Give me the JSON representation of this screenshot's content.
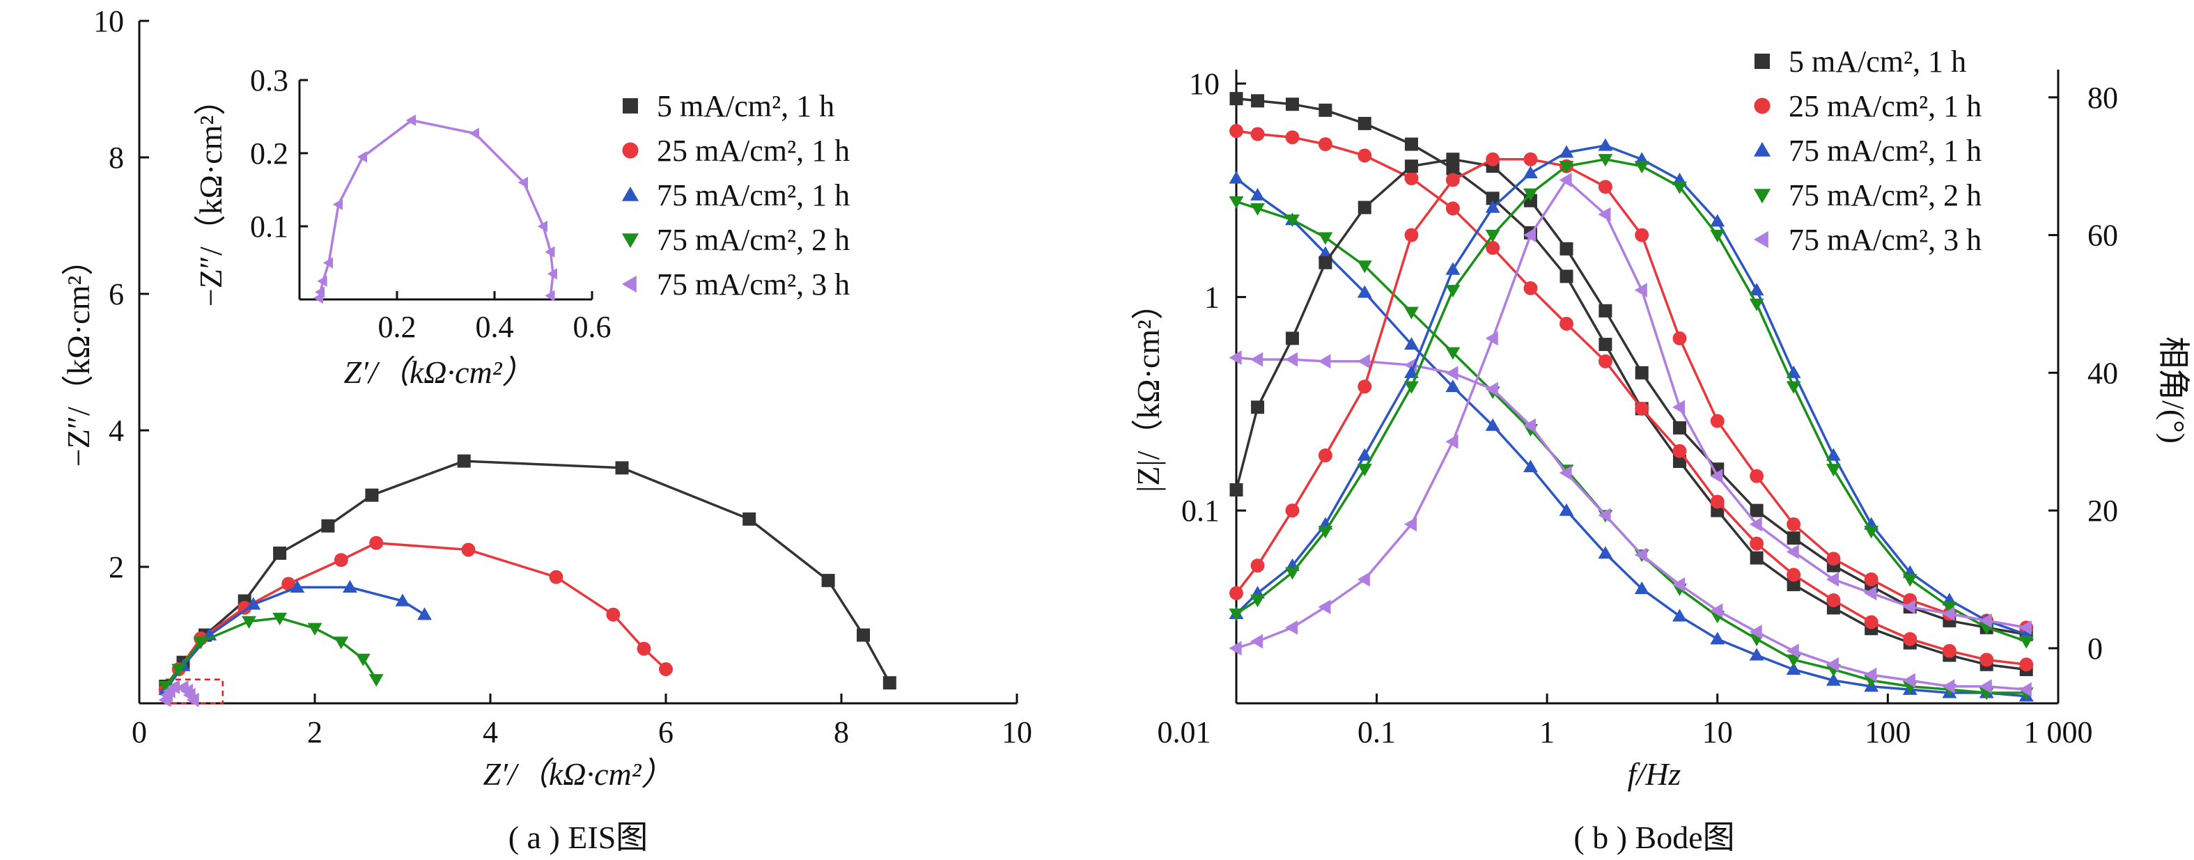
{
  "captions": {
    "a": "( a ) EIS图",
    "b": "( b ) Bode图"
  },
  "colors": {
    "s1": "#333333",
    "s2": "#e8383d",
    "s3": "#2b56c4",
    "s4": "#1a8f1a",
    "s5": "#b07ee0"
  },
  "legend_a": [
    "5 mA/cm², 1 h",
    "25 mA/cm², 1 h",
    "75 mA/cm², 1 h",
    "75 mA/cm², 2 h",
    "75 mA/cm², 3 h"
  ],
  "legend_b": [
    "5 mA/cm², 1 h",
    "25 mA/cm², 1 h",
    "75 mA/cm², 1 h",
    "75 mA/cm², 2 h",
    "75 mA/cm², 3 h"
  ],
  "chart_data": [
    {
      "id": "eis",
      "type": "scatter",
      "title": "",
      "xlabel": "Z′/（kΩ·cm²）",
      "ylabel": "−Z″/（kΩ·cm²）",
      "xlim": [
        0,
        10
      ],
      "ylim": [
        0,
        10
      ],
      "xticks": [
        "0",
        "2",
        "4",
        "6",
        "8",
        "10"
      ],
      "yticks": [
        "2",
        "4",
        "6",
        "8",
        "10"
      ],
      "series": [
        {
          "name": "5 mA/cm², 1 h",
          "marker": "square",
          "color": "#333333",
          "x": [
            0.3,
            0.5,
            0.75,
            1.2,
            1.6,
            2.15,
            2.65,
            3.7,
            5.5,
            6.95,
            7.85,
            8.25,
            8.55
          ],
          "y": [
            0.25,
            0.6,
            1.0,
            1.5,
            2.2,
            2.6,
            3.05,
            3.55,
            3.45,
            2.7,
            1.8,
            1.0,
            0.3
          ]
        },
        {
          "name": "25 mA/cm², 1 h",
          "marker": "circle",
          "color": "#e8383d",
          "x": [
            0.3,
            0.45,
            0.7,
            1.2,
            1.7,
            2.3,
            2.7,
            3.75,
            4.75,
            5.4,
            5.75,
            6.0
          ],
          "y": [
            0.2,
            0.5,
            0.95,
            1.4,
            1.75,
            2.1,
            2.35,
            2.25,
            1.85,
            1.3,
            0.8,
            0.5
          ]
        },
        {
          "name": "75 mA/cm², 1 h",
          "marker": "triangle-up",
          "color": "#2b56c4",
          "x": [
            0.3,
            0.5,
            0.8,
            1.3,
            1.8,
            2.4,
            3.0,
            3.25
          ],
          "y": [
            0.2,
            0.55,
            1.0,
            1.45,
            1.7,
            1.7,
            1.5,
            1.3
          ]
        },
        {
          "name": "75 mA/cm², 2 h",
          "marker": "triangle-down",
          "color": "#1a8f1a",
          "x": [
            0.3,
            0.45,
            0.7,
            1.25,
            1.6,
            2.0,
            2.3,
            2.55,
            2.7
          ],
          "y": [
            0.25,
            0.5,
            0.9,
            1.2,
            1.25,
            1.1,
            0.9,
            0.65,
            0.35
          ]
        },
        {
          "name": "75 mA/cm², 3 h",
          "marker": "triangle-left",
          "color": "#b07ee0",
          "x": [
            0.3,
            0.32,
            0.35,
            0.4,
            0.5,
            0.55,
            0.58,
            0.62
          ],
          "y": [
            0.05,
            0.12,
            0.18,
            0.24,
            0.23,
            0.18,
            0.12,
            0.05
          ]
        }
      ]
    },
    {
      "id": "eis-inset",
      "type": "scatter",
      "title": "",
      "xlabel": "Z′/（kΩ·cm²）",
      "ylabel": "−Z″/（kΩ·cm²）",
      "xlim": [
        0,
        0.6
      ],
      "ylim": [
        0,
        0.3
      ],
      "xticks": [
        "0.2",
        "0.4",
        "0.6"
      ],
      "yticks": [
        "0.1",
        "0.2",
        "0.3"
      ],
      "series": [
        {
          "name": "75 mA/cm², 3 h",
          "marker": "triangle-left",
          "color": "#b07ee0",
          "x": [
            0.04,
            0.043,
            0.048,
            0.06,
            0.08,
            0.13,
            0.23,
            0.36,
            0.46,
            0.5,
            0.515,
            0.52,
            0.515
          ],
          "y": [
            0.002,
            0.01,
            0.025,
            0.05,
            0.13,
            0.195,
            0.245,
            0.227,
            0.16,
            0.1,
            0.065,
            0.035,
            0.005
          ]
        }
      ]
    },
    {
      "id": "bode",
      "type": "line",
      "title": "",
      "xlabel": "f/Hz",
      "ylabel": "|Z|/（kΩ·cm²）",
      "y2label": "相角/(°)",
      "xscale": "log",
      "yscale": "log",
      "xlim": [
        0.015,
        1000
      ],
      "ylim": [
        0.0125,
        10
      ],
      "y2lim": [
        -8,
        82
      ],
      "xticks": [
        "0.01",
        "0.1",
        "1",
        "10",
        "100",
        "1 000"
      ],
      "yticks": [
        "0.1",
        "1",
        "10"
      ],
      "y2ticks": [
        "0",
        "20",
        "40",
        "60",
        "80"
      ],
      "f": [
        0.015,
        0.02,
        0.032,
        0.05,
        0.085,
        0.16,
        0.28,
        0.48,
        0.8,
        1.3,
        2.2,
        3.6,
        6,
        10,
        17,
        28,
        48,
        80,
        135,
        230,
        380,
        650
      ],
      "modulus": [
        {
          "name": "5 mA/cm², 1 h",
          "color": "#333333",
          "marker": "square",
          "values": [
            8.5,
            8.3,
            8.0,
            7.5,
            6.5,
            5.2,
            4.0,
            2.9,
            2.0,
            1.25,
            0.6,
            0.3,
            0.17,
            0.1,
            0.06,
            0.045,
            0.035,
            0.028,
            0.024,
            0.021,
            0.019,
            0.018
          ]
        },
        {
          "name": "25 mA/cm², 1 h",
          "color": "#e8383d",
          "marker": "circle",
          "values": [
            6.0,
            5.8,
            5.6,
            5.2,
            4.6,
            3.6,
            2.6,
            1.7,
            1.1,
            0.75,
            0.5,
            0.3,
            0.19,
            0.11,
            0.07,
            0.05,
            0.038,
            0.03,
            0.025,
            0.022,
            0.02,
            0.019
          ]
        },
        {
          "name": "75 mA/cm², 1 h",
          "color": "#2b56c4",
          "marker": "triangle-up",
          "values": [
            3.6,
            3.0,
            2.3,
            1.6,
            1.05,
            0.6,
            0.38,
            0.25,
            0.16,
            0.1,
            0.063,
            0.043,
            0.032,
            0.025,
            0.021,
            0.018,
            0.016,
            0.015,
            0.0145,
            0.014,
            0.014,
            0.0135
          ]
        },
        {
          "name": "75 mA/cm², 2 h",
          "color": "#1a8f1a",
          "marker": "triangle-down",
          "values": [
            2.8,
            2.6,
            2.3,
            1.9,
            1.4,
            0.85,
            0.55,
            0.36,
            0.24,
            0.155,
            0.095,
            0.062,
            0.043,
            0.032,
            0.025,
            0.02,
            0.018,
            0.016,
            0.015,
            0.0145,
            0.014,
            0.014
          ]
        },
        {
          "name": "75 mA/cm², 3 h",
          "color": "#b07ee0",
          "marker": "triangle-left",
          "values": [
            0.52,
            0.51,
            0.51,
            0.5,
            0.5,
            0.48,
            0.44,
            0.37,
            0.25,
            0.15,
            0.095,
            0.062,
            0.045,
            0.034,
            0.027,
            0.022,
            0.019,
            0.017,
            0.016,
            0.015,
            0.015,
            0.0145
          ]
        }
      ],
      "phase": [
        {
          "name": "5 mA/cm², 1 h",
          "color": "#333333",
          "marker": "square",
          "values": [
            23,
            35,
            45,
            56,
            64,
            70,
            71,
            70,
            65,
            58,
            49,
            40,
            32,
            26,
            20,
            16,
            12,
            9,
            6,
            4,
            3,
            2
          ]
        },
        {
          "name": "25 mA/cm², 1 h",
          "color": "#e8383d",
          "marker": "circle",
          "values": [
            8,
            12,
            20,
            28,
            38,
            60,
            68,
            71,
            71,
            70,
            67,
            60,
            45,
            33,
            25,
            18,
            13,
            10,
            7,
            5,
            4,
            3
          ]
        },
        {
          "name": "75 mA/cm², 1 h",
          "color": "#2b56c4",
          "marker": "triangle-up",
          "values": [
            5,
            8,
            12,
            18,
            28,
            40,
            55,
            64,
            69,
            72,
            73,
            71,
            68,
            62,
            52,
            40,
            28,
            18,
            11,
            7,
            4,
            2
          ]
        },
        {
          "name": "75 mA/cm², 2 h",
          "color": "#1a8f1a",
          "marker": "triangle-down",
          "values": [
            5,
            7,
            11,
            17,
            26,
            38,
            52,
            60,
            66,
            70,
            71,
            70,
            67,
            60,
            50,
            38,
            26,
            17,
            10,
            6,
            3,
            1
          ]
        },
        {
          "name": "75 mA/cm², 3 h",
          "color": "#b07ee0",
          "marker": "triangle-left",
          "values": [
            0,
            1,
            3,
            6,
            10,
            18,
            30,
            45,
            60,
            68,
            63,
            52,
            35,
            25,
            18,
            14,
            10,
            8,
            6,
            5,
            4,
            3
          ]
        }
      ]
    }
  ]
}
